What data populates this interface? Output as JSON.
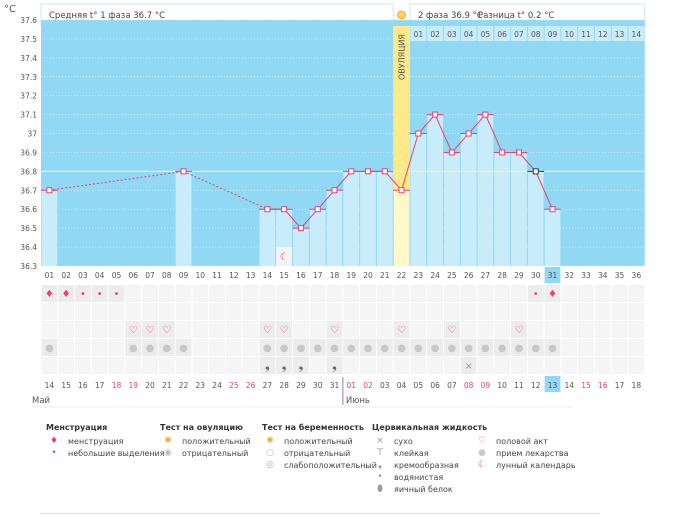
{
  "header": {
    "unit": "°C",
    "phase1": "Средняя t° 1 фаза 36.7 °C",
    "phase2": "2 фаза 36.9 °C",
    "diff": "Разница t° 0.2 °C",
    "ovulation_label": "ОВУЛЯЦИЯ"
  },
  "chart_data": {
    "type": "bar",
    "ylim": [
      36.3,
      37.6
    ],
    "yticks": [
      "37.6",
      "37.5",
      "37.4",
      "37.3",
      "37.2",
      "37.1",
      "37",
      "36.9",
      "36.8",
      "36.7",
      "36.6",
      "36.5",
      "36.4",
      "36.3"
    ],
    "cycle_days": 36,
    "ovulation_day": 22,
    "cover_line": 36.8,
    "today_day": 31,
    "temps": {
      "1": 36.7,
      "9": 36.8,
      "14": 36.6,
      "15": 36.6,
      "16": 36.5,
      "17": 36.6,
      "18": 36.7,
      "19": 36.8,
      "20": 36.8,
      "21": 36.8,
      "22": 36.7,
      "23": 37.0,
      "24": 37.1,
      "25": 36.9,
      "26": 37.0,
      "27": 37.1,
      "28": 36.9,
      "29": 36.9,
      "30": 36.8,
      "31": 36.6
    },
    "dashed_segments": [
      [
        1,
        9
      ],
      [
        9,
        14
      ]
    ]
  },
  "cycle_labels": [
    "01",
    "02",
    "03",
    "04",
    "05",
    "06",
    "07",
    "08",
    "09",
    "10",
    "11",
    "12",
    "13",
    "14",
    "15",
    "16",
    "17",
    "18",
    "19",
    "20",
    "21",
    "22",
    "23",
    "24",
    "25",
    "26",
    "27",
    "28",
    "29",
    "30",
    "31",
    "32",
    "33",
    "34",
    "35",
    "36"
  ],
  "phase2_labels": [
    "01",
    "02",
    "03",
    "04",
    "05",
    "06",
    "07",
    "08",
    "09",
    "10",
    "11",
    "12",
    "13",
    "14"
  ],
  "markers": {
    "menstruation_heavy": [
      1,
      2,
      31
    ],
    "menstruation_light": [
      3,
      4,
      5,
      30
    ],
    "hearts": [
      6,
      7,
      8,
      14,
      15,
      18,
      22,
      25,
      29
    ],
    "pills": [
      1,
      6,
      7,
      8,
      9,
      14,
      15,
      16,
      17,
      18,
      19,
      20,
      21,
      22,
      23,
      24,
      25,
      26,
      27,
      28,
      29,
      30,
      31
    ],
    "creamy": [
      14,
      15,
      16,
      18
    ],
    "dry": [
      26
    ],
    "moon": [
      15
    ]
  },
  "dates": [
    "14",
    "15",
    "16",
    "17",
    "18",
    "19",
    "20",
    "21",
    "22",
    "23",
    "24",
    "25",
    "26",
    "27",
    "28",
    "29",
    "30",
    "31",
    "01",
    "02",
    "03",
    "04",
    "05",
    "06",
    "07",
    "08",
    "09",
    "10",
    "11",
    "12",
    "13",
    "14",
    "15",
    "16",
    "17",
    "18"
  ],
  "weekend_idx": [
    4,
    5,
    11,
    12,
    18,
    19,
    25,
    26,
    32,
    33
  ],
  "months": [
    "Май",
    "Июнь"
  ],
  "legend": [
    {
      "title": "Менструация",
      "items": [
        {
          "icon": "drop-big",
          "label": "менструация"
        },
        {
          "icon": "drop-small",
          "label": "небольшие выделения"
        }
      ]
    },
    {
      "title": "Тест на овуляцию",
      "items": [
        {
          "icon": "sun",
          "label": "положительный"
        },
        {
          "icon": "grey-circle",
          "label": "отрицательный"
        }
      ]
    },
    {
      "title": "Тест на беременность",
      "items": [
        {
          "icon": "sun",
          "label": "положительный"
        },
        {
          "icon": "white-circle",
          "label": "отрицательный"
        },
        {
          "icon": "swirl",
          "label": "слабоположительный"
        }
      ]
    },
    {
      "title": "Цервикальная жидкость",
      "items": [
        {
          "icon": "x",
          "label": "сухо"
        },
        {
          "icon": "t",
          "label": "клейкая"
        },
        {
          "icon": "comma",
          "label": "кремообразная"
        },
        {
          "icon": "drop-grey",
          "label": "водянистая"
        },
        {
          "icon": "egg",
          "label": "яичный белок"
        }
      ]
    },
    {
      "title": "",
      "items": [
        {
          "icon": "heart",
          "label": "половой акт"
        },
        {
          "icon": "pill",
          "label": "прием лекарства"
        },
        {
          "icon": "moon",
          "label": "лунный календарь"
        }
      ]
    }
  ],
  "colors": {
    "plot": "#90d8f3",
    "bar": "#c9ecfa",
    "ovulation": "#fdf1a0",
    "line": "#e8416f",
    "accent": "#e8416f"
  }
}
